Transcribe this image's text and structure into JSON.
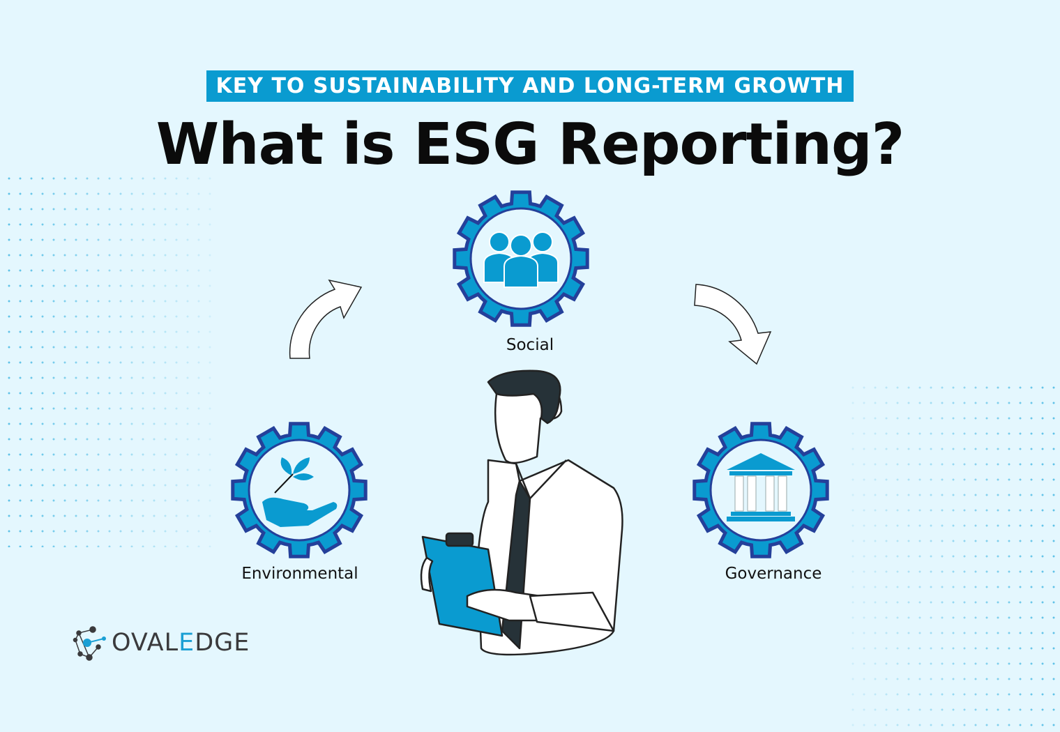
{
  "banner": "KEY TO SUSTAINABILITY AND LONG-TERM GROWTH",
  "title": "What is ESG Reporting?",
  "pillars": [
    {
      "label": "Social",
      "icon": "people-group-icon"
    },
    {
      "label": "Environmental",
      "icon": "plant-in-hand-icon"
    },
    {
      "label": "Governance",
      "icon": "government-building-icon"
    }
  ],
  "logo": {
    "prefix": "OVAL",
    "highlight": "E",
    "suffix": "DGE"
  },
  "colors": {
    "background": "#e4f7fe",
    "accent": "#0a9bd0",
    "gear_outline": "#24409a",
    "text": "#0b0b0b"
  }
}
